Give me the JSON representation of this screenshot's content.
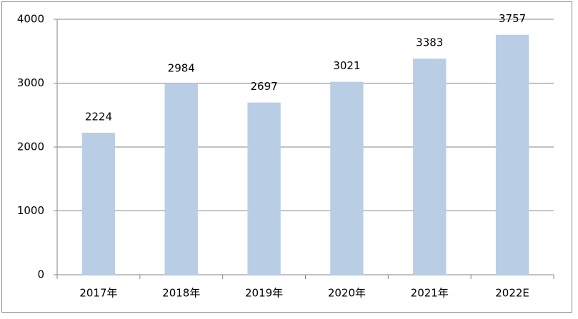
{
  "chart_data": {
    "type": "bar",
    "categories": [
      "2017年",
      "2018年",
      "2019年",
      "2020年",
      "2021年",
      "2022E"
    ],
    "values": [
      2224,
      2984,
      2697,
      3021,
      3383,
      3757
    ],
    "color": "#b9cde5",
    "ylim": [
      0,
      4000
    ],
    "yticks": [
      0,
      1000,
      2000,
      3000,
      4000
    ],
    "grid": true,
    "data_labels": true
  }
}
